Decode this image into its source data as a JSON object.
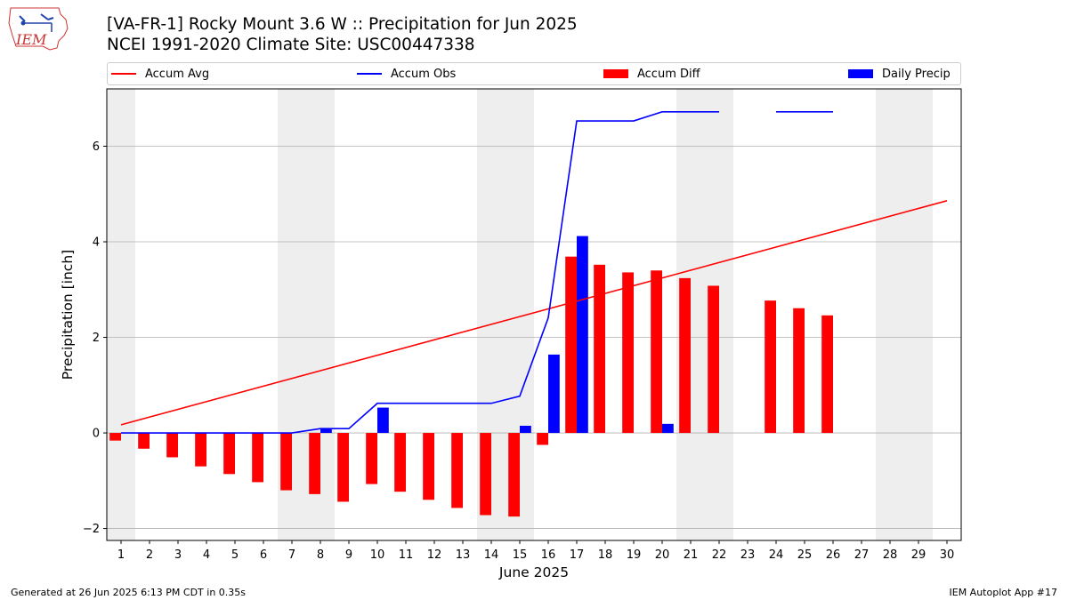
{
  "header": {
    "logo_text": "IEM",
    "title_line1": "[VA-FR-1] Rocky Mount 3.6 W :: Precipitation for Jun 2025",
    "title_line2": "NCEI 1991-2020 Climate Site: USC00447338"
  },
  "legend": {
    "items": [
      {
        "label": "Accum Avg",
        "kind": "line",
        "color": "#ff0000"
      },
      {
        "label": "Accum Obs",
        "kind": "line",
        "color": "#0000ff"
      },
      {
        "label": "Accum Diff",
        "kind": "patch",
        "color": "#ff0000"
      },
      {
        "label": "Daily Precip",
        "kind": "patch",
        "color": "#0000ff"
      }
    ]
  },
  "footer": {
    "left": "Generated at 26 Jun 2025 6:13 PM CDT in 0.35s",
    "right": "IEM Autoplot App #17"
  },
  "chart_data": {
    "type": "bar",
    "xlabel": "June 2025",
    "ylabel": "Precipitation [inch]",
    "xlim": [
      0.5,
      30.5
    ],
    "ylim": [
      -2.25,
      7.2
    ],
    "yticks": [
      -2,
      0,
      2,
      4,
      6
    ],
    "xticks": [
      1,
      2,
      3,
      4,
      5,
      6,
      7,
      8,
      9,
      10,
      11,
      12,
      13,
      14,
      15,
      16,
      17,
      18,
      19,
      20,
      21,
      22,
      23,
      24,
      25,
      26,
      27,
      28,
      29,
      30
    ],
    "grid": "horizontal",
    "weekend_shading": [
      [
        0.5,
        1.5
      ],
      [
        6.5,
        8.5
      ],
      [
        13.5,
        15.5
      ],
      [
        20.5,
        22.5
      ],
      [
        27.5,
        29.5
      ]
    ],
    "colors": {
      "avg": "#ff0000",
      "obs": "#0000ff",
      "diff": "#ff0000",
      "daily": "#0000ff",
      "shade": "#eeeeee",
      "grid": "#b0b0b0"
    },
    "series": [
      {
        "name": "Accum Avg",
        "kind": "line",
        "x": [
          1,
          30
        ],
        "values": [
          0.17,
          4.86
        ]
      },
      {
        "name": "Accum Obs",
        "kind": "line",
        "segments": [
          {
            "x": [
              1,
              2,
              3,
              4,
              5,
              6,
              7,
              8,
              9,
              10,
              11,
              12,
              13,
              14,
              15,
              16,
              17,
              18,
              19,
              20,
              21,
              22
            ],
            "values": [
              0,
              0,
              0,
              0,
              0,
              0,
              0,
              0.09,
              0.09,
              0.62,
              0.62,
              0.62,
              0.62,
              0.62,
              0.77,
              2.41,
              6.53,
              6.53,
              6.53,
              6.72,
              6.72,
              6.72
            ]
          },
          {
            "x": [
              24,
              25,
              26
            ],
            "values": [
              6.72,
              6.72,
              6.72
            ]
          }
        ]
      },
      {
        "name": "Accum Diff",
        "kind": "bar",
        "x": [
          1,
          2,
          3,
          4,
          5,
          6,
          7,
          8,
          9,
          10,
          11,
          12,
          13,
          14,
          15,
          16,
          17,
          18,
          19,
          20,
          21,
          22,
          24,
          25,
          26
        ],
        "values": [
          -0.16,
          -0.33,
          -0.51,
          -0.7,
          -0.86,
          -1.03,
          -1.2,
          -1.28,
          -1.44,
          -1.07,
          -1.23,
          -1.4,
          -1.57,
          -1.72,
          -1.75,
          -0.25,
          3.69,
          3.52,
          3.36,
          3.4,
          3.24,
          3.08,
          2.77,
          2.61,
          2.46
        ]
      },
      {
        "name": "Daily Precip",
        "kind": "bar",
        "x": [
          8,
          10,
          15,
          16,
          17,
          20
        ],
        "values": [
          0.09,
          0.53,
          0.15,
          1.64,
          4.12,
          0.19
        ]
      }
    ]
  }
}
